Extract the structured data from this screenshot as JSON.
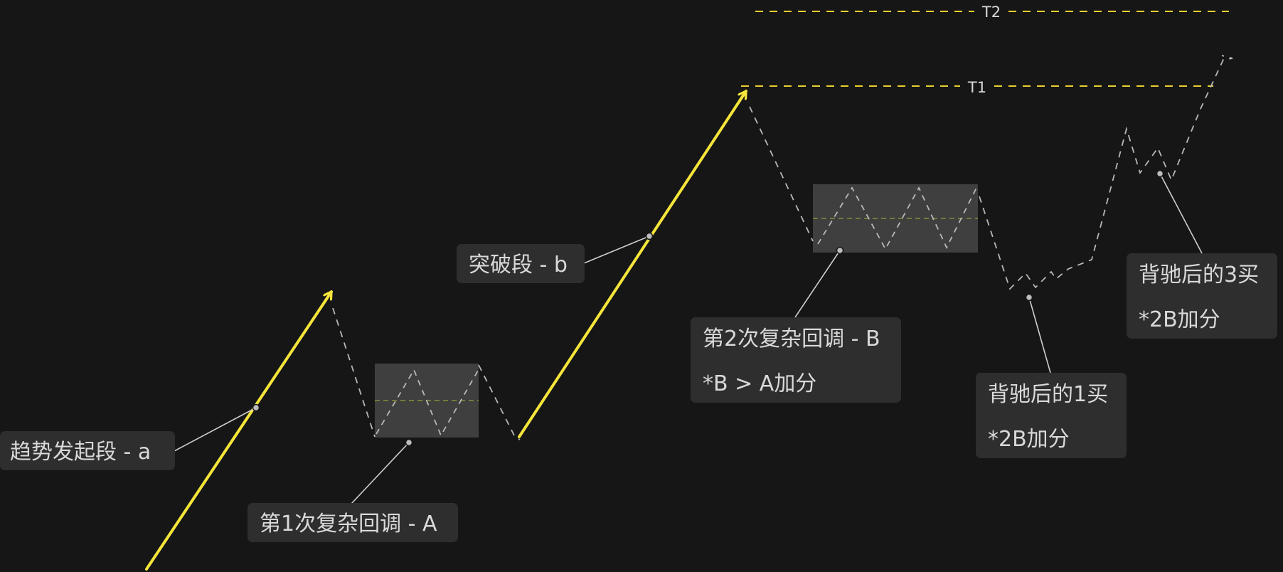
{
  "colors": {
    "background": "#161616",
    "impulse": "#f5e53a",
    "level_line": "#e8cf2e",
    "path": "#b8b8b8",
    "zone_fill": "#3f3f3f",
    "zone_midline": "#8a8c3a",
    "callout_box": "#2e2e2e",
    "callout_text": "#d9d9d9",
    "connector": "#cfcfcf"
  },
  "levels": [
    {
      "label": "T1"
    },
    {
      "label": "T2"
    }
  ],
  "labels": {
    "segment_a": {
      "lines": [
        "趋势发起段  - a"
      ]
    },
    "pullback_a": {
      "lines": [
        "第1次复杂回调 - A"
      ]
    },
    "segment_b": {
      "lines": [
        "突破段 - b"
      ]
    },
    "pullback_b": {
      "lines": [
        "第2次复杂回调 - B",
        "*B > A加分"
      ]
    },
    "buy_1": {
      "lines": [
        "背驰后的1买",
        "*2B加分"
      ]
    },
    "buy_3": {
      "lines": [
        "背驰后的3买",
        "*2B加分"
      ]
    }
  }
}
